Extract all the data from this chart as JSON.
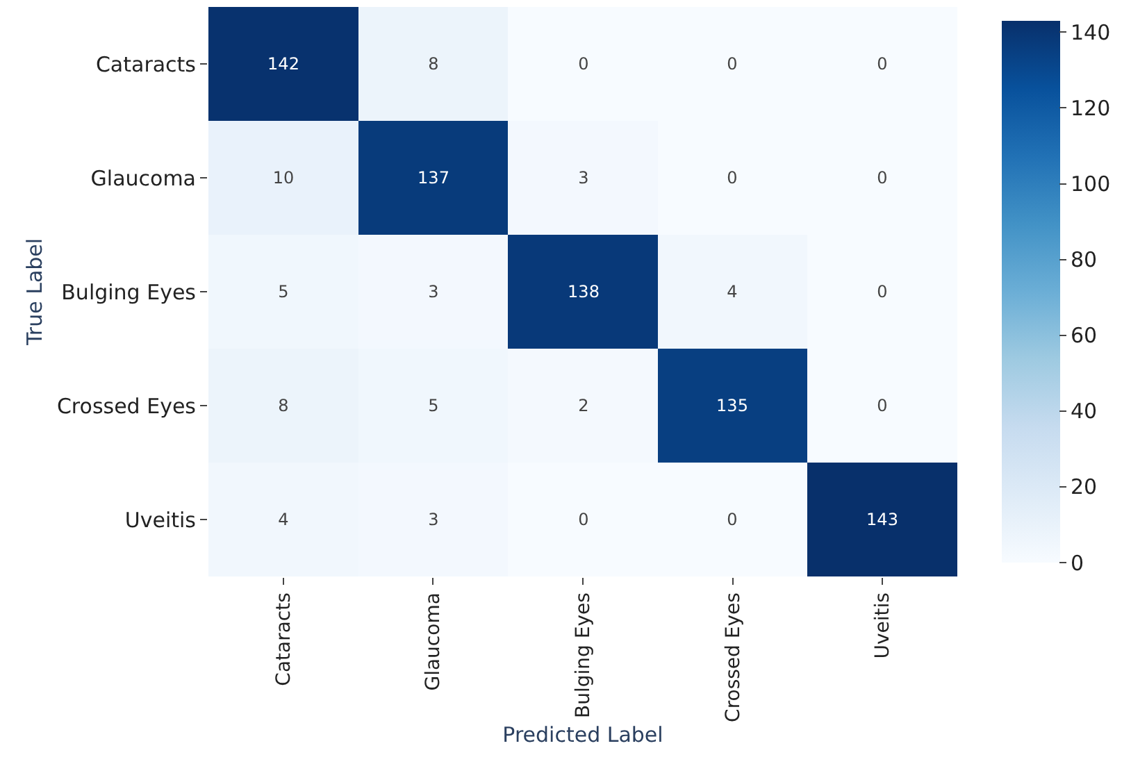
{
  "chart_data": {
    "type": "heatmap",
    "xlabel": "Predicted Label",
    "ylabel": "True Label",
    "categories": [
      "Cataracts",
      "Glaucoma",
      "Bulging Eyes",
      "Crossed Eyes",
      "Uveitis"
    ],
    "y_categories": [
      "Cataracts",
      "Glaucoma",
      "Bulging Eyes",
      "Crossed Eyes",
      "Uveitis"
    ],
    "cells": [
      [
        142,
        8,
        0,
        0,
        0
      ],
      [
        10,
        137,
        3,
        0,
        0
      ],
      [
        5,
        3,
        138,
        4,
        0
      ],
      [
        8,
        5,
        2,
        135,
        0
      ],
      [
        4,
        3,
        0,
        0,
        143
      ]
    ],
    "data_labels": true,
    "clim": [
      0,
      143
    ],
    "cticks": [
      0,
      20,
      40,
      60,
      80,
      100,
      120,
      140
    ]
  }
}
